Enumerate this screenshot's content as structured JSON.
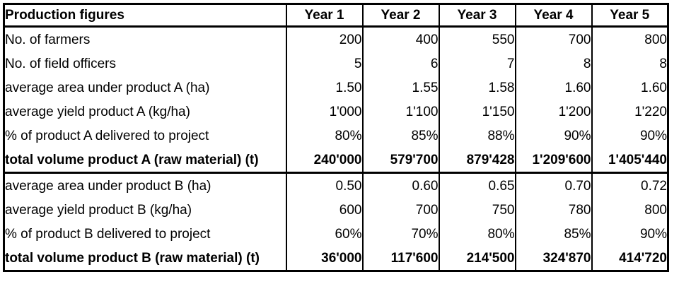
{
  "table": {
    "title": "Production figures",
    "columns": [
      "Year 1",
      "Year 2",
      "Year 3",
      "Year 4",
      "Year 5"
    ],
    "rows": [
      {
        "label": "No. of farmers",
        "values": [
          "200",
          "400",
          "550",
          "700",
          "800"
        ]
      },
      {
        "label": "No. of field officers",
        "values": [
          "5",
          "6",
          "7",
          "8",
          "8"
        ]
      },
      {
        "label": "average area under product A (ha)",
        "values": [
          "1.50",
          "1.55",
          "1.58",
          "1.60",
          "1.60"
        ]
      },
      {
        "label": "average yield product A (kg/ha)",
        "values": [
          "1'000",
          "1'100",
          "1'150",
          "1'200",
          "1'220"
        ]
      },
      {
        "label": "% of product A delivered to project",
        "values": [
          "80%",
          "85%",
          "88%",
          "90%",
          "90%"
        ]
      },
      {
        "label": "total volume product A (raw material) (t)",
        "values": [
          "240'000",
          "579'700",
          "879'428",
          "1'209'600",
          "1'405'440"
        ],
        "bold": true
      },
      {
        "label": "average area under product B (ha)",
        "values": [
          "0.50",
          "0.60",
          "0.65",
          "0.70",
          "0.72"
        ]
      },
      {
        "label": "average yield product B (kg/ha)",
        "values": [
          "600",
          "700",
          "750",
          "780",
          "800"
        ]
      },
      {
        "label": "% of product B delivered to project",
        "values": [
          "60%",
          "70%",
          "80%",
          "85%",
          "90%"
        ]
      },
      {
        "label": "total volume product B (raw material) (t)",
        "values": [
          "36'000",
          "117'600",
          "214'500",
          "324'870",
          "414'720"
        ],
        "bold": true
      }
    ],
    "colors": {
      "border": "#000000",
      "text": "#000000",
      "background": "#ffffff"
    }
  }
}
